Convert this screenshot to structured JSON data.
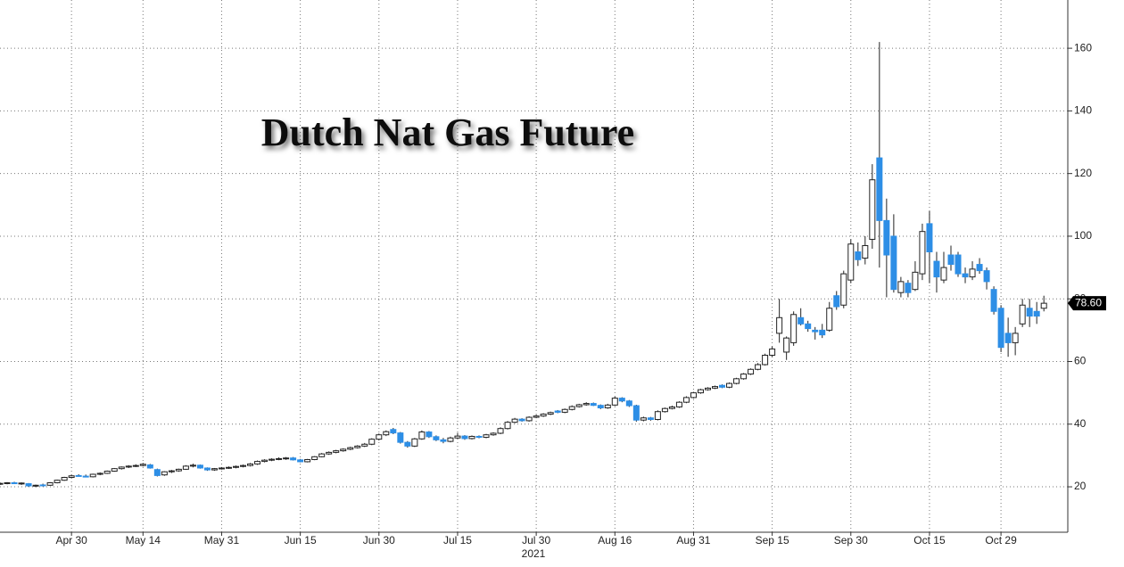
{
  "chart_data": {
    "type": "candlestick",
    "title": "Dutch Nat Gas Future",
    "categories": [
      null,
      null,
      null,
      null,
      null,
      null,
      null,
      null,
      null,
      null,
      "Apr 30",
      null,
      null,
      null,
      null,
      null,
      null,
      null,
      null,
      null,
      "May 14",
      null,
      null,
      null,
      null,
      null,
      null,
      null,
      null,
      null,
      null,
      "May 31",
      null,
      null,
      null,
      null,
      null,
      null,
      null,
      null,
      null,
      null,
      "Jun 15",
      null,
      null,
      null,
      null,
      null,
      null,
      null,
      null,
      null,
      null,
      "Jun 30",
      null,
      null,
      null,
      null,
      null,
      null,
      null,
      null,
      null,
      null,
      "Jul 15",
      null,
      null,
      null,
      null,
      null,
      null,
      null,
      null,
      null,
      null,
      "Jul 30",
      null,
      null,
      null,
      null,
      null,
      null,
      null,
      null,
      null,
      null,
      "Aug 16",
      null,
      null,
      null,
      null,
      null,
      null,
      null,
      null,
      null,
      null,
      "Aug 31",
      null,
      null,
      null,
      null,
      null,
      null,
      null,
      null,
      null,
      null,
      "Sep 15",
      null,
      null,
      null,
      null,
      null,
      null,
      null,
      null,
      null,
      null,
      "Sep 30",
      null,
      null,
      null,
      null,
      null,
      null,
      null,
      null,
      null,
      null,
      "Oct 15",
      null,
      null,
      null,
      null,
      null,
      null,
      null,
      null,
      null,
      "Oct 29",
      null,
      null,
      null,
      null,
      null,
      null
    ],
    "open": [
      20.9,
      21.1,
      21.3,
      21.0,
      21.0,
      20.3,
      20.6,
      20.5,
      21.3,
      22.1,
      23.0,
      23.6,
      23.4,
      23.2,
      24.0,
      24.3,
      25.0,
      25.8,
      26.3,
      26.6,
      26.8,
      27.0,
      25.5,
      23.8,
      24.8,
      25.1,
      25.6,
      26.6,
      26.9,
      26.0,
      25.4,
      25.8,
      26.0,
      26.2,
      26.5,
      26.8,
      27.3,
      28.1,
      28.5,
      28.8,
      29.0,
      29.2,
      28.6,
      28.0,
      28.7,
      29.6,
      30.5,
      31.0,
      31.5,
      32.0,
      32.5,
      33.0,
      33.6,
      35.2,
      36.6,
      38.3,
      37.2,
      34.2,
      33.0,
      35.3,
      37.5,
      36.0,
      35.0,
      34.5,
      35.6,
      36.2,
      35.4,
      36.1,
      35.8,
      36.6,
      37.1,
      38.6,
      40.6,
      41.6,
      41.1,
      42.2,
      42.6,
      43.2,
      44.2,
      43.8,
      44.7,
      45.6,
      46.2,
      46.6,
      46.0,
      45.2,
      46.1,
      48.3,
      47.4,
      45.9,
      41.3,
      42.0,
      41.5,
      44.0,
      45.0,
      45.5,
      47.0,
      48.5,
      50.0,
      51.0,
      51.5,
      52.4,
      51.8,
      53.0,
      54.5,
      56.0,
      57.5,
      59.0,
      62.0,
      69,
      63,
      66,
      74,
      72,
      70,
      70,
      70,
      81,
      78,
      86,
      95,
      93,
      99,
      125,
      105,
      100,
      82,
      85,
      83,
      88,
      104,
      92,
      86,
      94,
      94,
      88,
      87,
      91,
      89,
      83,
      77,
      69,
      66,
      72,
      77,
      76,
      77
    ],
    "high": [
      21.4,
      21.5,
      21.6,
      21.4,
      21.2,
      20.7,
      21.0,
      21.5,
      22.3,
      23.2,
      23.8,
      24.0,
      23.9,
      24.2,
      24.6,
      25.2,
      26.0,
      26.5,
      26.9,
      27.2,
      27.6,
      27.3,
      25.8,
      25.0,
      25.4,
      25.8,
      26.9,
      27.4,
      27.1,
      26.2,
      26.0,
      26.3,
      26.5,
      26.8,
      27.1,
      27.6,
      28.4,
      28.8,
      29.1,
      29.4,
      29.5,
      29.5,
      28.9,
      28.9,
      29.8,
      30.8,
      31.3,
      31.8,
      32.3,
      32.8,
      33.3,
      34.0,
      35.5,
      37.0,
      38.0,
      38.8,
      37.5,
      34.6,
      35.6,
      38.0,
      37.8,
      36.4,
      35.6,
      36.0,
      37.2,
      36.5,
      36.4,
      36.4,
      36.9,
      37.4,
      39.0,
      41.0,
      42.0,
      41.9,
      42.5,
      43.0,
      43.5,
      44.0,
      44.5,
      45.0,
      46.0,
      46.5,
      47.0,
      46.9,
      46.3,
      46.5,
      48.8,
      48.6,
      47.7,
      46.2,
      42.4,
      42.3,
      44.4,
      45.3,
      45.9,
      47.3,
      48.9,
      50.3,
      51.3,
      51.8,
      52.3,
      52.7,
      53.3,
      54.8,
      56.3,
      57.8,
      59.5,
      62.5,
      64.8,
      80,
      68,
      76,
      77,
      73,
      71,
      72,
      79,
      82.5,
      89,
      99,
      98,
      100,
      123,
      162,
      112,
      107,
      87,
      86,
      92,
      104,
      108,
      95,
      95,
      97,
      95,
      90,
      92,
      93,
      90,
      84,
      78,
      74,
      71,
      80,
      80,
      79,
      81
    ],
    "low": [
      20.6,
      20.8,
      20.9,
      20.6,
      20.0,
      19.9,
      20.1,
      20.3,
      21.1,
      21.9,
      22.8,
      23.3,
      23.0,
      23.0,
      23.7,
      24.1,
      24.8,
      25.5,
      26.0,
      26.3,
      26.5,
      25.8,
      23.3,
      23.5,
      24.4,
      24.8,
      25.4,
      26.2,
      25.8,
      25.1,
      25.1,
      25.5,
      25.7,
      25.9,
      26.2,
      26.5,
      27.0,
      27.8,
      28.2,
      28.5,
      28.6,
      28.4,
      27.8,
      27.8,
      28.5,
      29.4,
      30.2,
      30.7,
      31.2,
      31.7,
      32.2,
      32.7,
      33.3,
      34.8,
      36.2,
      36.8,
      33.8,
      32.5,
      32.7,
      35.0,
      35.6,
      34.6,
      33.9,
      34.2,
      35.3,
      35.0,
      35.1,
      35.5,
      35.5,
      36.3,
      36.8,
      38.3,
      40.3,
      40.8,
      40.8,
      41.9,
      42.3,
      42.9,
      43.5,
      43.5,
      44.4,
      45.3,
      45.9,
      45.8,
      44.8,
      44.9,
      45.8,
      47.0,
      45.5,
      40.8,
      40.9,
      41.1,
      41.2,
      43.7,
      44.7,
      45.2,
      46.7,
      48.2,
      49.7,
      50.7,
      51.2,
      51.5,
      51.5,
      52.7,
      54.2,
      55.7,
      57.2,
      58.7,
      61.5,
      66,
      60.5,
      65,
      71.5,
      69.5,
      67,
      67.5,
      69.5,
      76.5,
      77,
      85,
      90.5,
      91,
      96,
      90,
      80.5,
      82,
      80.5,
      80.5,
      82.5,
      86,
      85,
      82,
      85,
      89,
      87,
      85,
      86,
      88,
      83,
      75,
      63,
      61.5,
      62,
      71,
      71,
      72,
      76
    ],
    "close": [
      21.1,
      21.3,
      21.0,
      21.2,
      20.3,
      20.5,
      20.4,
      21.3,
      22.1,
      23.0,
      23.5,
      23.4,
      23.2,
      24.0,
      24.3,
      25.0,
      25.8,
      26.3,
      26.6,
      26.8,
      27.2,
      26.0,
      23.6,
      24.8,
      25.1,
      25.6,
      26.6,
      26.9,
      26.0,
      25.4,
      25.8,
      26.0,
      26.2,
      26.5,
      26.8,
      27.3,
      28.1,
      28.5,
      28.8,
      29.0,
      29.2,
      28.6,
      28.0,
      28.7,
      29.6,
      30.5,
      31.0,
      31.5,
      32.0,
      32.5,
      33.0,
      33.6,
      35.2,
      36.6,
      37.6,
      37.2,
      34.2,
      33.0,
      35.3,
      37.5,
      36.0,
      35.0,
      34.5,
      35.6,
      36.2,
      35.4,
      36.1,
      35.8,
      36.6,
      37.1,
      38.6,
      40.6,
      41.6,
      41.1,
      42.2,
      42.6,
      43.2,
      43.7,
      43.8,
      44.7,
      45.6,
      46.2,
      46.6,
      46.0,
      45.2,
      46.1,
      48.3,
      47.4,
      45.9,
      41.3,
      42.0,
      41.5,
      44.0,
      45.0,
      45.5,
      47.0,
      48.5,
      50.0,
      51.0,
      51.5,
      52.0,
      51.8,
      53.0,
      54.5,
      56.0,
      57.5,
      59.0,
      62.0,
      64.0,
      74,
      67.5,
      75,
      72,
      70.5,
      69.5,
      68.5,
      77,
      77.5,
      88,
      97.5,
      92.5,
      97,
      118,
      105,
      94,
      83,
      85.5,
      82,
      88.5,
      101.5,
      95,
      87,
      90,
      91,
      88,
      87,
      89.5,
      89,
      85.5,
      76,
      64.5,
      66,
      69,
      78,
      74.5,
      74.5,
      78.6
    ],
    "up_color": "#ffffff",
    "down_color": "#2d8ee6",
    "ylim": [
      5.5,
      175.4
    ],
    "yticks": [
      20,
      40,
      60,
      80,
      100,
      120,
      140,
      160
    ],
    "grid": true,
    "year_label": "2021",
    "last_price": {
      "value": 78.6,
      "label": "78.60"
    }
  }
}
